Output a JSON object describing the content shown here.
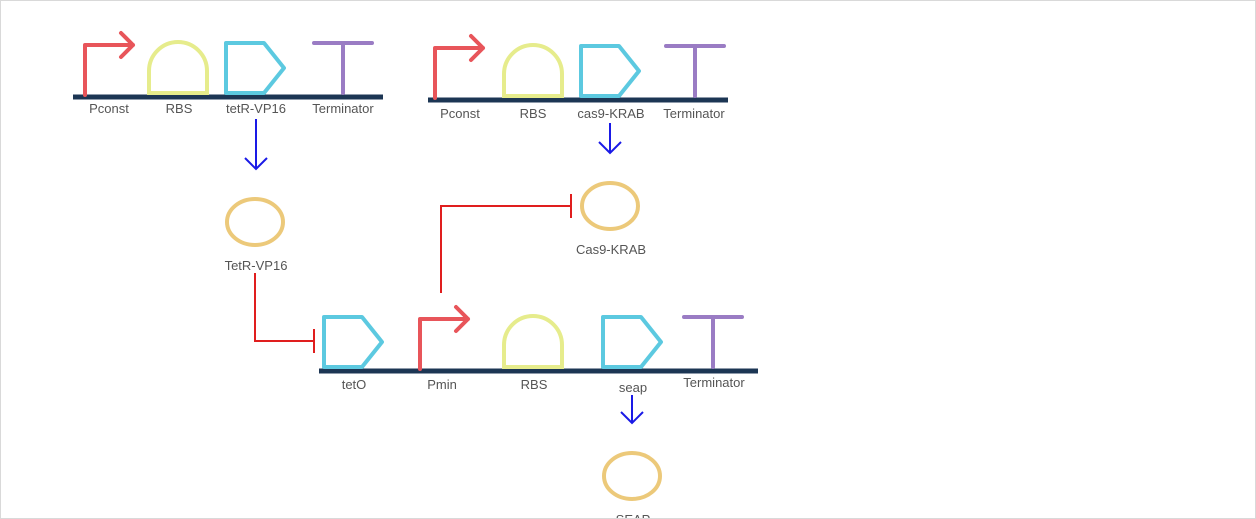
{
  "colors": {
    "promoter": "#e8555a",
    "rbs": "#e6ec8c",
    "cds": "#5cc9e0",
    "terminator": "#9a7cc4",
    "backbone": "#1c3654",
    "protein": "#ecc97a",
    "arrow": "#1a1ae6",
    "repression": "#e01e1e"
  },
  "constructs": [
    {
      "id": "construct-1",
      "parts": [
        {
          "type": "promoter",
          "label": "Pconst"
        },
        {
          "type": "rbs",
          "label": "RBS"
        },
        {
          "type": "cds",
          "label": "tetR-VP16"
        },
        {
          "type": "terminator",
          "label": "Terminator"
        }
      ]
    },
    {
      "id": "construct-2",
      "parts": [
        {
          "type": "promoter",
          "label": "Pconst"
        },
        {
          "type": "rbs",
          "label": "RBS"
        },
        {
          "type": "cds",
          "label": "cas9-KRAB"
        },
        {
          "type": "terminator",
          "label": "Terminator"
        }
      ]
    },
    {
      "id": "construct-3",
      "parts": [
        {
          "type": "cds",
          "label": "tetO"
        },
        {
          "type": "promoter",
          "label": "Pmin"
        },
        {
          "type": "rbs",
          "label": "RBS"
        },
        {
          "type": "cds",
          "label": "seap"
        },
        {
          "type": "terminator",
          "label": "Terminator"
        }
      ]
    }
  ],
  "proteins": [
    {
      "id": "tetr-vp16",
      "label": "TetR-VP16"
    },
    {
      "id": "cas9-krab",
      "label": "Cas9-KRAB"
    },
    {
      "id": "seap",
      "label": "SEAP"
    }
  ],
  "interactions": [
    {
      "type": "expression",
      "from": "tetR-VP16",
      "to": "TetR-VP16"
    },
    {
      "type": "expression",
      "from": "cas9-KRAB",
      "to": "Cas9-KRAB"
    },
    {
      "type": "expression",
      "from": "seap",
      "to": "SEAP"
    },
    {
      "type": "repression",
      "from": "TetR-VP16",
      "to": "tetO"
    },
    {
      "type": "repression",
      "from": "Pmin",
      "to": "Cas9-KRAB"
    }
  ]
}
